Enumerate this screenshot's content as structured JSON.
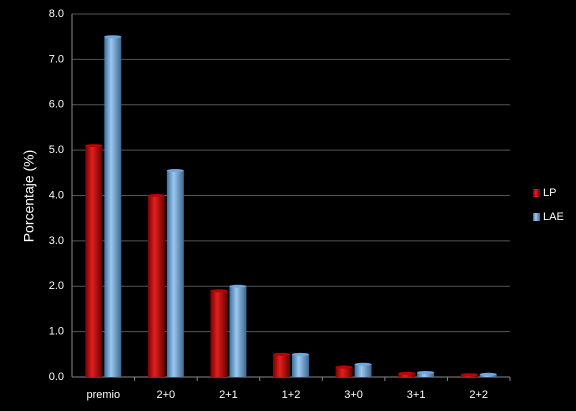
{
  "chart_data": {
    "type": "bar",
    "y_label": "Porcentaje (%)",
    "categories": [
      "premio",
      "2+0",
      "2+1",
      "1+2",
      "3+0",
      "3+1",
      "2+2"
    ],
    "series": [
      {
        "name": "LP",
        "color": "#c00000",
        "values": [
          5.1,
          4.0,
          1.9,
          0.5,
          0.22,
          0.08,
          0.05
        ]
      },
      {
        "name": "LAE",
        "color": "#6fa8dc",
        "values": [
          7.5,
          4.55,
          2.0,
          0.5,
          0.28,
          0.1,
          0.06
        ]
      }
    ],
    "ylim": [
      0,
      8
    ],
    "yticks": [
      {
        "value": 0,
        "label": "0.0"
      },
      {
        "value": 1,
        "label": "1.0"
      },
      {
        "value": 2,
        "label": "2.0"
      },
      {
        "value": 3,
        "label": "3.0"
      },
      {
        "value": 4,
        "label": "4.0"
      },
      {
        "value": 5,
        "label": "5.0"
      },
      {
        "value": 6,
        "label": "6.0"
      },
      {
        "value": 7,
        "label": "7.0"
      },
      {
        "value": 8,
        "label": "8.0"
      }
    ],
    "grid": true,
    "legend": "right"
  }
}
